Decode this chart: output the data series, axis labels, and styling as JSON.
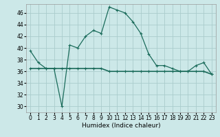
{
  "title": "",
  "xlabel": "Humidex (Indice chaleur)",
  "background_color": "#cce8e8",
  "grid_color": "#aacccc",
  "line_color": "#1a6b5a",
  "xlim": [
    -0.5,
    23.5
  ],
  "ylim": [
    29,
    47.5
  ],
  "yticks": [
    30,
    32,
    34,
    36,
    38,
    40,
    42,
    44,
    46
  ],
  "xticks": [
    0,
    1,
    2,
    3,
    4,
    5,
    6,
    7,
    8,
    9,
    10,
    11,
    12,
    13,
    14,
    15,
    16,
    17,
    18,
    19,
    20,
    21,
    22,
    23
  ],
  "humidex_line1": {
    "x": [
      0,
      1,
      2,
      3,
      4,
      5,
      6,
      7,
      8,
      9,
      10,
      11,
      12,
      13,
      14,
      15,
      16,
      17,
      18,
      19,
      20,
      21,
      22,
      23
    ],
    "y": [
      39.5,
      37.5,
      36.5,
      36.5,
      30.0,
      40.5,
      40.0,
      42.0,
      43.0,
      42.5,
      47.0,
      46.5,
      46.0,
      44.5,
      42.5,
      39.0,
      37.0,
      37.0,
      36.5,
      36.0,
      36.0,
      37.0,
      37.5,
      35.5
    ]
  },
  "humidex_line2": {
    "x": [
      0,
      1,
      2,
      3,
      4,
      5,
      6,
      7,
      8,
      9,
      10,
      11,
      12,
      13,
      14,
      15,
      16,
      17,
      18,
      19,
      20,
      21,
      22,
      23
    ],
    "y": [
      36.5,
      36.5,
      36.5,
      36.5,
      36.5,
      36.5,
      36.5,
      36.5,
      36.5,
      36.5,
      36.0,
      36.0,
      36.0,
      36.0,
      36.0,
      36.0,
      36.0,
      36.0,
      36.0,
      36.0,
      36.0,
      36.0,
      36.0,
      35.5
    ]
  },
  "xlabel_fontsize": 6.5,
  "tick_fontsize": 5.5
}
